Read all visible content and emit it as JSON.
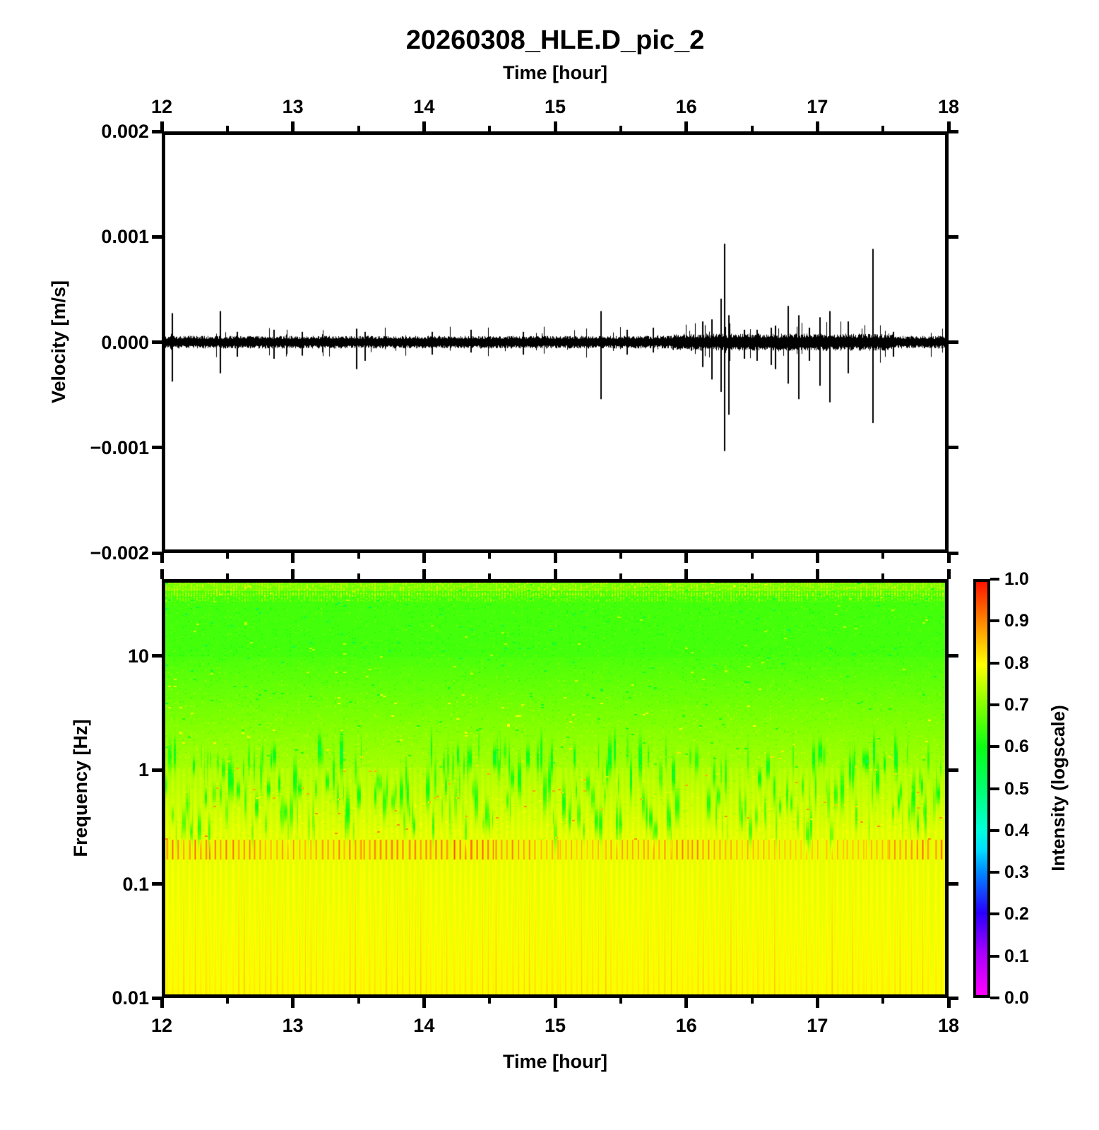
{
  "title": "20260308_HLE.D_pic_2",
  "top_axis": {
    "label": "Time [hour]",
    "tick_values": [
      12,
      13,
      14,
      15,
      16,
      17,
      18
    ],
    "tick_labels": [
      "12",
      "13",
      "14",
      "15",
      "16",
      "17",
      "18"
    ],
    "minor_tick_values": [
      12.5,
      13.5,
      14.5,
      15.5,
      16.5,
      17.5
    ]
  },
  "bottom_axis": {
    "label": "Time [hour]",
    "tick_values": [
      12,
      13,
      14,
      15,
      16,
      17,
      18
    ],
    "tick_labels": [
      "12",
      "13",
      "14",
      "15",
      "16",
      "17",
      "18"
    ],
    "minor_tick_values": [
      12.5,
      13.5,
      14.5,
      15.5,
      16.5,
      17.5
    ]
  },
  "waveform_panel": {
    "ylabel": "Velocity [m/s]",
    "ytick_values": [
      0.002,
      0.001,
      0.0,
      -0.001,
      -0.002
    ],
    "ytick_labels": [
      "0.002",
      "0.001",
      "0.000",
      "−0.001",
      "−0.002"
    ]
  },
  "spectrogram_panel": {
    "ylabel": "Frequency [Hz]",
    "ytick_values": [
      10,
      1,
      0.1,
      0.01
    ],
    "ytick_labels": [
      "10",
      "1",
      "0.1",
      "0.01"
    ]
  },
  "colorbar": {
    "label": "Intensity (logscale)",
    "tick_values": [
      1.0,
      0.9,
      0.8,
      0.7,
      0.6,
      0.5,
      0.4,
      0.3,
      0.2,
      0.1,
      0.0
    ],
    "tick_labels": [
      "1.0",
      "0.9",
      "0.8",
      "0.7",
      "0.6",
      "0.5",
      "0.4",
      "0.3",
      "0.2",
      "0.1",
      "0.0"
    ],
    "stops": [
      {
        "v": 0.0,
        "color": "#ff00ff"
      },
      {
        "v": 0.1,
        "color": "#aa00ff"
      },
      {
        "v": 0.2,
        "color": "#2800ff"
      },
      {
        "v": 0.3,
        "color": "#008cff"
      },
      {
        "v": 0.35,
        "color": "#00dcff"
      },
      {
        "v": 0.4,
        "color": "#00ffdc"
      },
      {
        "v": 0.5,
        "color": "#00ff6e"
      },
      {
        "v": 0.6,
        "color": "#0aff14"
      },
      {
        "v": 0.7,
        "color": "#82ff00"
      },
      {
        "v": 0.8,
        "color": "#ffff00"
      },
      {
        "v": 0.9,
        "color": "#ff8c00"
      },
      {
        "v": 1.0,
        "color": "#ff1400"
      }
    ]
  },
  "chart_data": [
    {
      "type": "line",
      "title": "20260308_HLE.D_pic_2",
      "xlabel": "Time [hour]",
      "ylabel": "Velocity [m/s]",
      "x_range": [
        12,
        18
      ],
      "ylim": [
        -0.002,
        0.002
      ],
      "grid": false,
      "line_color": "#000000",
      "noise_band_amplitude": 5e-05,
      "spikes": [
        {
          "t": 12.05,
          "up": 0.00028,
          "down": -0.00038
        },
        {
          "t": 12.42,
          "up": 0.0003,
          "down": -0.0003
        },
        {
          "t": 12.55,
          "up": 0.0001,
          "down": -0.00014
        },
        {
          "t": 12.83,
          "up": 0.00012,
          "down": -0.00016
        },
        {
          "t": 13.05,
          "up": 0.0001,
          "down": -0.00013
        },
        {
          "t": 13.47,
          "up": 0.00013,
          "down": -0.00026
        },
        {
          "t": 13.53,
          "up": 0.0001,
          "down": -0.00018
        },
        {
          "t": 14.05,
          "up": 0.0001,
          "down": -0.00012
        },
        {
          "t": 14.35,
          "up": 0.00012,
          "down": -0.0001
        },
        {
          "t": 14.75,
          "up": 0.0001,
          "down": -0.00012
        },
        {
          "t": 15.35,
          "up": 0.0003,
          "down": -0.00055
        },
        {
          "t": 15.55,
          "up": 0.00012,
          "down": -0.00012
        },
        {
          "t": 15.75,
          "up": 0.00014,
          "down": -0.0001
        },
        {
          "t": 16.13,
          "up": 0.0002,
          "down": -0.00024
        },
        {
          "t": 16.2,
          "up": 0.00022,
          "down": -0.00036
        },
        {
          "t": 16.27,
          "up": 0.00042,
          "down": -0.00048
        },
        {
          "t": 16.3,
          "up": 0.00095,
          "down": -0.00105
        },
        {
          "t": 16.33,
          "up": 0.00026,
          "down": -0.0007
        },
        {
          "t": 16.45,
          "up": 0.00012,
          "down": -0.00016
        },
        {
          "t": 16.55,
          "up": 0.00012,
          "down": -0.00018
        },
        {
          "t": 16.66,
          "up": 0.00014,
          "down": -0.00022
        },
        {
          "t": 16.69,
          "up": 0.00016,
          "down": -0.00026
        },
        {
          "t": 16.79,
          "up": 0.00035,
          "down": -0.0004
        },
        {
          "t": 16.87,
          "up": 0.00026,
          "down": -0.00055
        },
        {
          "t": 16.95,
          "up": 0.00014,
          "down": -0.00018
        },
        {
          "t": 17.03,
          "up": 0.00024,
          "down": -0.00042
        },
        {
          "t": 17.11,
          "up": 0.0003,
          "down": -0.00058
        },
        {
          "t": 17.25,
          "up": 0.0002,
          "down": -0.0003
        },
        {
          "t": 17.44,
          "up": 0.0009,
          "down": -0.00078
        },
        {
          "t": 17.6,
          "up": 0.0001,
          "down": -0.00014
        }
      ]
    },
    {
      "type": "heatmap",
      "xlabel": "Time [hour]",
      "ylabel": "Frequency [Hz]",
      "x_range": [
        12,
        18
      ],
      "y_range": [
        0.01,
        47
      ],
      "y_scale": "log",
      "colorbar_label": "Intensity (logscale)",
      "colorbar_range": [
        0.0,
        1.0
      ],
      "intensity_profile": [
        {
          "freq_hz": 47,
          "intensity": 0.68
        },
        {
          "freq_hz": 10,
          "intensity": 0.65
        },
        {
          "freq_hz": 2,
          "intensity": 0.7
        },
        {
          "freq_hz": 1,
          "intensity": 0.73
        },
        {
          "freq_hz": 0.3,
          "intensity": 0.765
        },
        {
          "freq_hz": 0.2,
          "intensity": 0.82
        },
        {
          "freq_hz": 0.1,
          "intensity": 0.78
        },
        {
          "freq_hz": 0.01,
          "intensity": 0.79
        }
      ],
      "features": [
        "fine vertical stripe texture with ~2 minute period over whole panel",
        "orange/red striped horizontal band near 0.2 Hz, strength varies with time",
        "green speckled texture above ~2 Hz, brightest dotted rows near 40 Hz",
        "sparse dark-green vertical streaks between 0.3 and 1.5 Hz",
        "yellow background with orange stripe cores near bottom (0.01-0.05 Hz)"
      ]
    }
  ]
}
